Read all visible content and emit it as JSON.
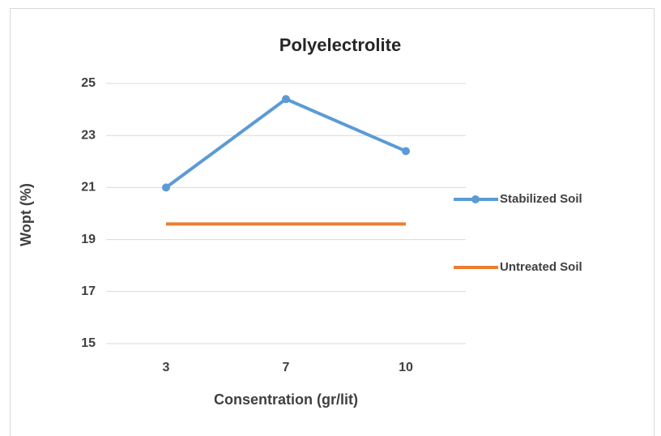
{
  "chart_data": {
    "type": "line",
    "title": "Polyelectrolite",
    "x_label": "Consentration (gr/lit)",
    "y_label": "Wopt (%)",
    "categories": [
      "3",
      "7",
      "10"
    ],
    "series": [
      {
        "name": "Stabilized Soil",
        "color": "#5b9bd5",
        "marker": "circle",
        "values": [
          21,
          24.4,
          22.4
        ]
      },
      {
        "name": "Untreated Soil",
        "color": "#ed7d31",
        "values": [
          19.6,
          19.6,
          19.6
        ]
      }
    ],
    "ylim": [
      15,
      25
    ],
    "yticks": [
      15,
      17,
      19,
      21,
      23,
      25
    ],
    "grid": true,
    "legend": "right"
  }
}
